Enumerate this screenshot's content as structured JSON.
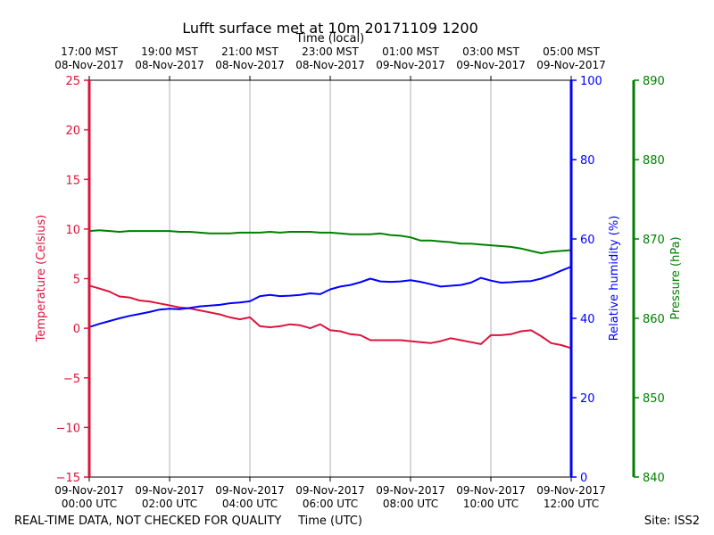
{
  "chart_data": {
    "type": "line",
    "title": "Lufft surface met at 10m 20171109 1200",
    "top_axis_label": "Time (local)",
    "top_ticks": [
      {
        "time": "17:00 MST",
        "date": "08-Nov-2017"
      },
      {
        "time": "19:00 MST",
        "date": "08-Nov-2017"
      },
      {
        "time": "21:00 MST",
        "date": "08-Nov-2017"
      },
      {
        "time": "23:00 MST",
        "date": "08-Nov-2017"
      },
      {
        "time": "01:00 MST",
        "date": "09-Nov-2017"
      },
      {
        "time": "03:00 MST",
        "date": "09-Nov-2017"
      },
      {
        "time": "05:00 MST",
        "date": "09-Nov-2017"
      }
    ],
    "xlabel": "Time (UTC)",
    "x_ticks": [
      {
        "date": "09-Nov-2017",
        "time": "00:00 UTC"
      },
      {
        "date": "09-Nov-2017",
        "time": "02:00 UTC"
      },
      {
        "date": "09-Nov-2017",
        "time": "04:00 UTC"
      },
      {
        "date": "09-Nov-2017",
        "time": "06:00 UTC"
      },
      {
        "date": "09-Nov-2017",
        "time": "08:00 UTC"
      },
      {
        "date": "09-Nov-2017",
        "time": "10:00 UTC"
      },
      {
        "date": "09-Nov-2017",
        "time": "12:00 UTC"
      }
    ],
    "xlim_hours": [
      0,
      12
    ],
    "axes": {
      "temperature": {
        "label": "Temperature (Celsius)",
        "ylim": [
          -15,
          25
        ],
        "ticks": [
          25,
          20,
          15,
          10,
          5,
          0,
          -5,
          -10,
          -15
        ],
        "tick_labels": [
          "25",
          "20",
          "15",
          "10",
          "5",
          "0",
          "−5",
          "−10",
          "−15"
        ],
        "color": "#dc143c"
      },
      "humidity": {
        "label": "Relative humidity (%)",
        "ylim": [
          0,
          100
        ],
        "ticks": [
          100,
          80,
          60,
          40,
          20,
          0
        ],
        "tick_labels": [
          "100",
          "80",
          "60",
          "40",
          "20",
          "0"
        ],
        "color": "#0000ff"
      },
      "pressure": {
        "label": "Pressure (hPa)",
        "ylim": [
          840,
          890
        ],
        "ticks": [
          890,
          880,
          870,
          860,
          850,
          840
        ],
        "tick_labels": [
          "890",
          "880",
          "870",
          "860",
          "850",
          "840"
        ],
        "color": "#008000"
      }
    },
    "series": [
      {
        "name": "Temperature",
        "axis": "temperature",
        "color": "#dc143c",
        "x": [
          0,
          0.25,
          0.5,
          0.75,
          1.0,
          1.25,
          1.5,
          1.75,
          2.0,
          2.25,
          2.5,
          2.75,
          3.0,
          3.25,
          3.5,
          3.75,
          4.0,
          4.25,
          4.5,
          4.75,
          5.0,
          5.25,
          5.5,
          5.75,
          6.0,
          6.25,
          6.5,
          6.75,
          7.0,
          7.25,
          7.5,
          7.75,
          8.0,
          8.25,
          8.5,
          8.75,
          9.0,
          9.25,
          9.5,
          9.75,
          10.0,
          10.25,
          10.5,
          10.75,
          11.0,
          11.25,
          11.5,
          11.75,
          12.0
        ],
        "values": [
          4.3,
          4.0,
          3.7,
          3.2,
          3.1,
          2.8,
          2.7,
          2.5,
          2.3,
          2.1,
          2.0,
          1.8,
          1.6,
          1.4,
          1.1,
          0.9,
          1.1,
          0.2,
          0.1,
          0.2,
          0.4,
          0.3,
          0.0,
          0.4,
          -0.2,
          -0.3,
          -0.6,
          -0.7,
          -1.2,
          -1.2,
          -1.2,
          -1.2,
          -1.3,
          -1.4,
          -1.5,
          -1.3,
          -1.0,
          -1.2,
          -1.4,
          -1.6,
          -0.7,
          -0.7,
          -0.6,
          -0.3,
          -0.2,
          -0.8,
          -1.5,
          -1.7,
          -2.0
        ]
      },
      {
        "name": "Relative humidity",
        "axis": "humidity",
        "color": "#0000ff",
        "x": [
          0,
          0.25,
          0.5,
          0.75,
          1.0,
          1.25,
          1.5,
          1.75,
          2.0,
          2.25,
          2.5,
          2.75,
          3.0,
          3.25,
          3.5,
          3.75,
          4.0,
          4.25,
          4.5,
          4.75,
          5.0,
          5.25,
          5.5,
          5.75,
          6.0,
          6.25,
          6.5,
          6.75,
          7.0,
          7.25,
          7.5,
          7.75,
          8.0,
          8.25,
          8.5,
          8.75,
          9.0,
          9.25,
          9.5,
          9.75,
          10.0,
          10.25,
          10.5,
          10.75,
          11.0,
          11.25,
          11.5,
          11.75,
          12.0
        ],
        "values": [
          37.8,
          38.6,
          39.3,
          40.0,
          40.6,
          41.1,
          41.6,
          42.2,
          42.4,
          42.3,
          42.6,
          43.0,
          43.2,
          43.4,
          43.8,
          44.0,
          44.3,
          45.6,
          45.9,
          45.6,
          45.7,
          45.9,
          46.3,
          46.1,
          47.3,
          48.0,
          48.4,
          49.1,
          50.0,
          49.3,
          49.2,
          49.3,
          49.6,
          49.2,
          48.6,
          48.0,
          48.2,
          48.4,
          49.0,
          50.2,
          49.5,
          49.0,
          49.1,
          49.3,
          49.4,
          50.0,
          50.9,
          52.0,
          53.0
        ]
      },
      {
        "name": "Pressure",
        "axis": "pressure",
        "color": "#008000",
        "x": [
          0,
          0.25,
          0.5,
          0.75,
          1.0,
          1.25,
          1.5,
          1.75,
          2.0,
          2.25,
          2.5,
          2.75,
          3.0,
          3.25,
          3.5,
          3.75,
          4.0,
          4.25,
          4.5,
          4.75,
          5.0,
          5.25,
          5.5,
          5.75,
          6.0,
          6.25,
          6.5,
          6.75,
          7.0,
          7.25,
          7.5,
          7.75,
          8.0,
          8.25,
          8.5,
          8.75,
          9.0,
          9.25,
          9.5,
          9.75,
          10.0,
          10.25,
          10.5,
          10.75,
          11.0,
          11.25,
          11.5,
          11.75,
          12.0
        ],
        "values": [
          871.0,
          871.1,
          871.0,
          870.9,
          871.0,
          871.0,
          871.0,
          871.0,
          871.0,
          870.9,
          870.9,
          870.8,
          870.7,
          870.7,
          870.7,
          870.8,
          870.8,
          870.8,
          870.9,
          870.8,
          870.9,
          870.9,
          870.9,
          870.8,
          870.8,
          870.7,
          870.6,
          870.6,
          870.6,
          870.7,
          870.5,
          870.4,
          870.2,
          869.8,
          869.8,
          869.7,
          869.6,
          869.4,
          869.4,
          869.3,
          869.2,
          869.1,
          869.0,
          868.8,
          868.5,
          868.2,
          868.4,
          868.5,
          868.6
        ]
      }
    ]
  },
  "footer": {
    "left_note": "REAL-TIME DATA, NOT CHECKED FOR QUALITY",
    "site": "Site: ISS2"
  }
}
